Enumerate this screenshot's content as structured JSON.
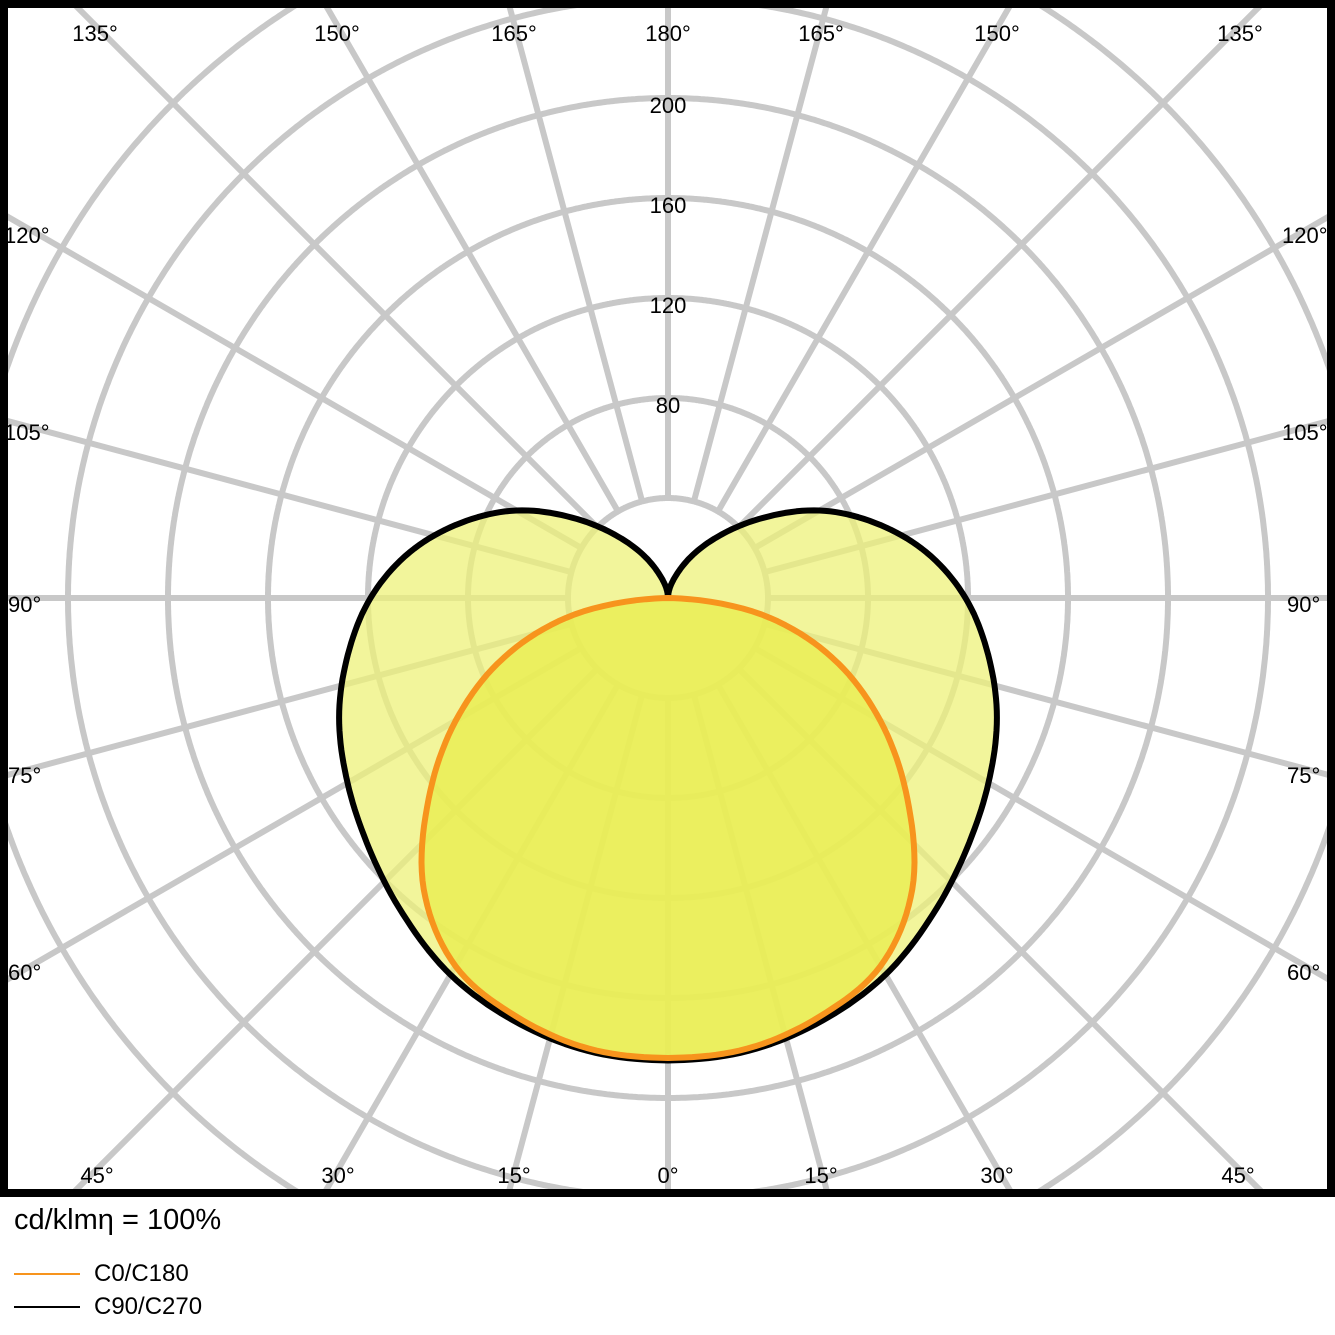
{
  "chart_data": {
    "type": "polar",
    "unit_label": "cd/klmη = 100%",
    "radial_ticks": [
      80,
      120,
      160,
      200
    ],
    "radial_rings": [
      40,
      80,
      120,
      160,
      200,
      240,
      280
    ],
    "angle_labels_top": [
      "135°",
      "150°",
      "165°",
      "180°",
      "165°",
      "150°",
      "135°"
    ],
    "angle_labels_side": [
      "120°",
      "105°",
      "90°",
      "75°",
      "60°"
    ],
    "angle_labels_bottom": [
      "45°",
      "30°",
      "15°",
      "0°",
      "15°",
      "30°",
      "45°"
    ],
    "grid": true,
    "legend_position": "bottom-left",
    "angles": [
      0,
      10,
      20,
      30,
      40,
      50,
      60,
      70,
      80,
      90,
      100,
      110,
      120,
      130,
      140,
      150,
      160,
      170,
      180
    ],
    "series": [
      {
        "name": "C0/C180",
        "color": "#f7941d",
        "fill": "#e9ee50",
        "values": [
          184,
          183,
          178,
          170,
          152,
          125,
          98,
          70,
          38,
          0,
          null,
          null,
          null,
          null,
          null,
          null,
          null,
          null,
          null
        ]
      },
      {
        "name": "C90/C270",
        "color": "#000000",
        "fill": "#eef27a",
        "values": [
          185,
          184,
          180,
          174,
          165,
          156,
          148,
          140,
          130,
          119,
          105,
          88,
          70,
          50,
          33,
          20,
          10,
          4,
          0
        ]
      }
    ]
  }
}
